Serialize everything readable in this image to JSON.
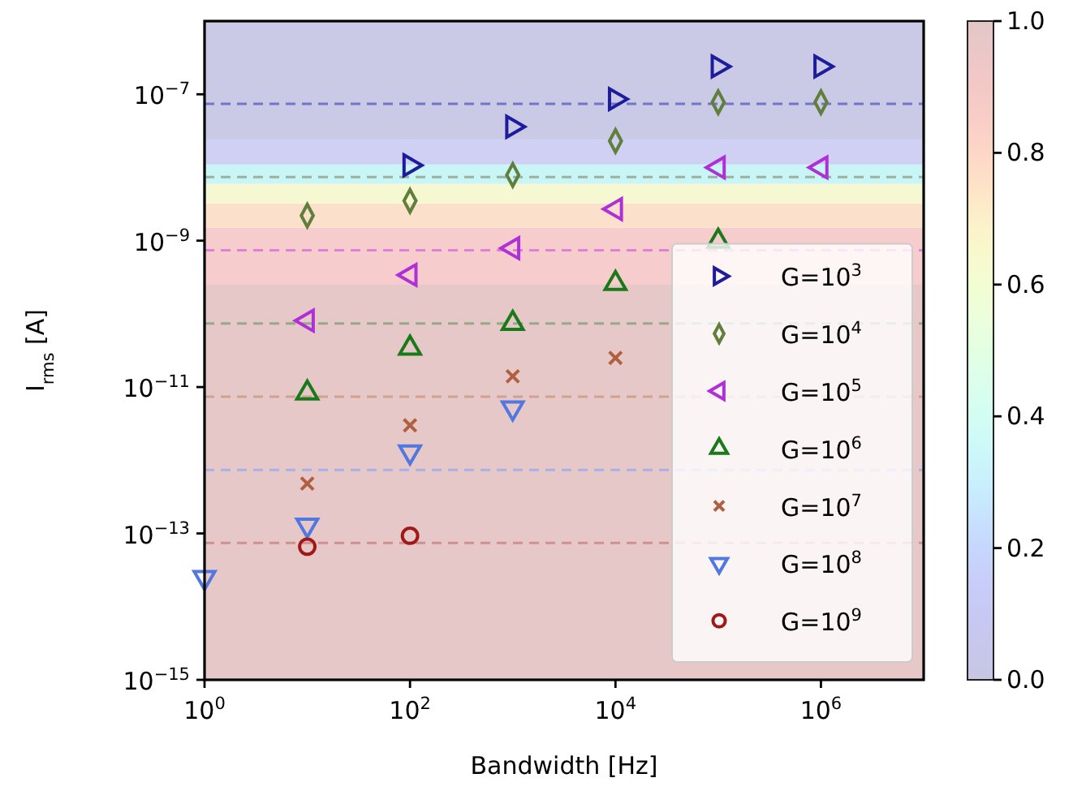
{
  "chart_data": {
    "type": "scatter",
    "xlabel": "Bandwidth  [Hz]",
    "ylabel": "I$_{rms}$  [A]",
    "log": "xy",
    "grid": false,
    "legend": "bottom right",
    "xlim": [
      1,
      10000000
    ],
    "ylim": [
      1e-15,
      1e-06
    ],
    "xticks": [
      {
        "value": 1,
        "label": "10$^{0}$"
      },
      {
        "value": 100,
        "label": "10$^{2}$"
      },
      {
        "value": 10000,
        "label": "10$^{4}$"
      },
      {
        "value": 1000000,
        "label": "10$^{6}$"
      }
    ],
    "yticks": [
      {
        "value": 1e-15,
        "label": "10$^{−15}$"
      },
      {
        "value": 1e-13,
        "label": "10$^{−13}$"
      },
      {
        "value": 1e-11,
        "label": "10$^{−11}$"
      },
      {
        "value": 1e-09,
        "label": "10$^{−9}$"
      },
      {
        "value": 1e-07,
        "label": "10$^{−7}$"
      }
    ],
    "clim": [
      0,
      1
    ],
    "cticks": [
      {
        "value": 0,
        "label": "0.0"
      },
      {
        "value": 0.2,
        "label": "0.2"
      },
      {
        "value": 0.4,
        "label": "0.4"
      },
      {
        "value": 0.6,
        "label": "0.6"
      },
      {
        "value": 0.8,
        "label": "0.8"
      },
      {
        "value": 1,
        "label": "1.0"
      }
    ],
    "bands": [
      {
        "axis": "y",
        "from": 1e-15,
        "to": 2.5e-10,
        "color": "#e6c8c8"
      },
      {
        "axis": "y",
        "from": 2.5e-10,
        "to": 1.5e-09,
        "color": "#f7cccc"
      },
      {
        "axis": "y",
        "from": 1.5e-09,
        "to": 3.2e-09,
        "color": "#fbe0cc"
      },
      {
        "axis": "y",
        "from": 3.2e-09,
        "to": 6e-09,
        "color": "#f5f8d0"
      },
      {
        "axis": "y",
        "from": 6e-09,
        "to": 1.1e-08,
        "color": "#c8f5f5"
      },
      {
        "axis": "y",
        "from": 1.1e-08,
        "to": 2.4e-08,
        "color": "#d0d0f5"
      },
      {
        "axis": "y",
        "from": 2.4e-08,
        "to": 1e-06,
        "color": "#cbcae6"
      }
    ],
    "ref_lines": [
      {
        "axis": "y",
        "value": 7.4e-08,
        "color": "#7474c8",
        "line_style": "dashed"
      },
      {
        "axis": "y",
        "value": 7.4e-09,
        "color": "#a0b0a0",
        "line_style": "dashed"
      },
      {
        "axis": "y",
        "value": 7.4e-10,
        "color": "#e080d8",
        "line_style": "dashed"
      },
      {
        "axis": "y",
        "value": 7.4e-11,
        "color": "#98a888",
        "line_style": "dashed"
      },
      {
        "axis": "y",
        "value": 7.4e-12,
        "color": "#d0a090",
        "line_style": "dashed"
      },
      {
        "axis": "y",
        "value": 7.4e-13,
        "color": "#a8b0e8",
        "line_style": "dashed"
      },
      {
        "axis": "y",
        "value": 7.4e-14,
        "color": "#d09090",
        "line_style": "dashed"
      }
    ],
    "series": [
      {
        "name": "G=10$^{3}$",
        "color": "#1c1c9c",
        "marker": "triangle-right",
        "x": [
          100,
          1000,
          10000,
          100000,
          1000000
        ],
        "values": [
          1.07e-08,
          3.6e-08,
          8.6e-08,
          2.4e-07,
          2.4e-07
        ]
      },
      {
        "name": "G=10$^{4}$",
        "color": "#5f7f3a",
        "marker": "diamond",
        "x": [
          10,
          100,
          1000,
          10000,
          100000,
          1000000
        ],
        "values": [
          2.2e-09,
          3.5e-09,
          7.9e-09,
          2.3e-08,
          7.8e-08,
          7.8e-08
        ]
      },
      {
        "name": "G=10$^{5}$",
        "color": "#b030d8",
        "marker": "triangle-left",
        "x": [
          10,
          100,
          1000,
          10000,
          100000,
          1000000
        ],
        "values": [
          8.1e-11,
          3.4e-10,
          7.9e-10,
          2.7e-09,
          1e-08,
          1e-08
        ]
      },
      {
        "name": "G=10$^{6}$",
        "color": "#1a7a1a",
        "marker": "triangle",
        "x": [
          10,
          100,
          1000,
          10000,
          100000
        ],
        "values": [
          8.3e-12,
          3.4e-11,
          7.4e-11,
          2.6e-10,
          9.8e-10
        ]
      },
      {
        "name": "G=10$^{7}$",
        "color": "#b06040",
        "marker": "cross",
        "x": [
          10,
          100,
          1000,
          10000
        ],
        "values": [
          4.8e-13,
          3e-12,
          1.4e-11,
          2.5e-11
        ]
      },
      {
        "name": "G=10$^{8}$",
        "color": "#5078e0",
        "marker": "triangle-down",
        "x": [
          1,
          10,
          100,
          1000
        ],
        "values": [
          2.5e-14,
          1.3e-13,
          1.3e-12,
          5.2e-12
        ]
      },
      {
        "name": "G=10$^{9}$",
        "color": "#a01818",
        "marker": "circle",
        "x": [
          10,
          100
        ],
        "values": [
          6.6e-14,
          9.3e-14
        ]
      }
    ]
  }
}
